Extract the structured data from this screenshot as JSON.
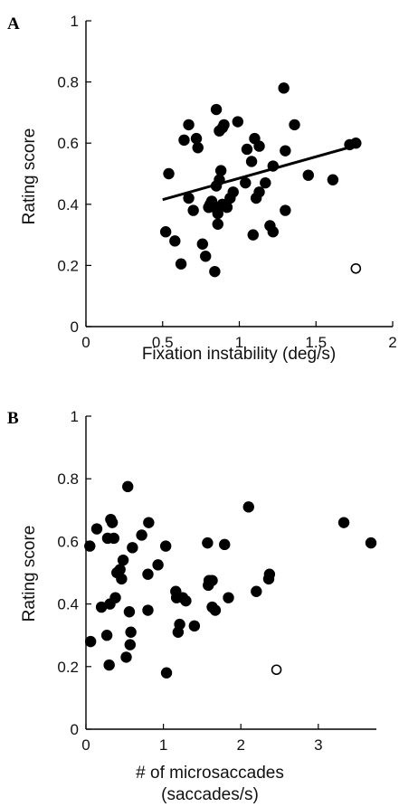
{
  "chart_data": [
    {
      "panel": "A",
      "type": "scatter",
      "xlabel": "Fixation instability (deg/s)",
      "ylabel": "Rating score",
      "xlim": [
        0,
        2
      ],
      "ylim": [
        0,
        1
      ],
      "xticks": [
        "0",
        "0.5",
        "1",
        "1.5",
        "2"
      ],
      "yticks": [
        "0",
        "0.2",
        "0.4",
        "0.6",
        "0.8",
        "1"
      ],
      "grid": false,
      "points": [
        [
          0.52,
          0.31
        ],
        [
          0.54,
          0.5
        ],
        [
          0.58,
          0.28
        ],
        [
          0.62,
          0.205
        ],
        [
          0.64,
          0.61
        ],
        [
          0.67,
          0.42
        ],
        [
          0.67,
          0.66
        ],
        [
          0.7,
          0.38
        ],
        [
          0.72,
          0.615
        ],
        [
          0.73,
          0.585
        ],
        [
          0.76,
          0.27
        ],
        [
          0.78,
          0.23
        ],
        [
          0.8,
          0.39
        ],
        [
          0.81,
          0.4
        ],
        [
          0.82,
          0.41
        ],
        [
          0.84,
          0.18
        ],
        [
          0.84,
          0.39
        ],
        [
          0.85,
          0.71
        ],
        [
          0.85,
          0.46
        ],
        [
          0.86,
          0.335
        ],
        [
          0.86,
          0.37
        ],
        [
          0.87,
          0.64
        ],
        [
          0.87,
          0.48
        ],
        [
          0.88,
          0.51
        ],
        [
          0.89,
          0.65
        ],
        [
          0.89,
          0.4
        ],
        [
          0.9,
          0.66
        ],
        [
          0.92,
          0.39
        ],
        [
          0.94,
          0.42
        ],
        [
          0.96,
          0.44
        ],
        [
          0.99,
          0.67
        ],
        [
          1.04,
          0.47
        ],
        [
          1.05,
          0.58
        ],
        [
          1.08,
          0.54
        ],
        [
          1.09,
          0.3
        ],
        [
          1.1,
          0.615
        ],
        [
          1.11,
          0.42
        ],
        [
          1.13,
          0.59
        ],
        [
          1.13,
          0.44
        ],
        [
          1.17,
          0.47
        ],
        [
          1.2,
          0.33
        ],
        [
          1.22,
          0.31
        ],
        [
          1.22,
          0.525
        ],
        [
          1.29,
          0.78
        ],
        [
          1.3,
          0.38
        ],
        [
          1.3,
          0.575
        ],
        [
          1.36,
          0.66
        ],
        [
          1.45,
          0.495
        ],
        [
          1.61,
          0.48
        ],
        [
          1.72,
          0.595
        ],
        [
          1.76,
          0.6
        ]
      ],
      "outliers": [
        [
          1.76,
          0.19
        ]
      ],
      "fit_line": {
        "x": [
          0.5,
          1.78
        ],
        "y": [
          0.415,
          0.595
        ]
      }
    },
    {
      "panel": "B",
      "type": "scatter",
      "xlabel": "# of microsaccades",
      "xlabel_line2": "(saccades/s)",
      "ylabel": "Rating score",
      "xlim": [
        0,
        3.75
      ],
      "ylim": [
        0,
        1
      ],
      "xticks": [
        "0",
        "1",
        "2",
        "3"
      ],
      "yticks": [
        "0",
        "0.2",
        "0.4",
        "0.6",
        "0.8",
        "1"
      ],
      "grid": false,
      "points": [
        [
          0.05,
          0.585
        ],
        [
          0.06,
          0.28
        ],
        [
          0.14,
          0.64
        ],
        [
          0.2,
          0.39
        ],
        [
          0.27,
          0.3
        ],
        [
          0.28,
          0.61
        ],
        [
          0.3,
          0.205
        ],
        [
          0.31,
          0.4
        ],
        [
          0.32,
          0.67
        ],
        [
          0.34,
          0.66
        ],
        [
          0.36,
          0.61
        ],
        [
          0.38,
          0.42
        ],
        [
          0.4,
          0.5
        ],
        [
          0.44,
          0.51
        ],
        [
          0.46,
          0.48
        ],
        [
          0.48,
          0.54
        ],
        [
          0.52,
          0.23
        ],
        [
          0.54,
          0.775
        ],
        [
          0.56,
          0.375
        ],
        [
          0.57,
          0.27
        ],
        [
          0.58,
          0.31
        ],
        [
          0.6,
          0.58
        ],
        [
          0.72,
          0.62
        ],
        [
          0.8,
          0.38
        ],
        [
          0.81,
          0.66
        ],
        [
          0.8,
          0.495
        ],
        [
          0.93,
          0.525
        ],
        [
          1.03,
          0.585
        ],
        [
          1.04,
          0.18
        ],
        [
          1.16,
          0.44
        ],
        [
          1.17,
          0.42
        ],
        [
          1.19,
          0.31
        ],
        [
          1.21,
          0.335
        ],
        [
          1.25,
          0.42
        ],
        [
          1.29,
          0.41
        ],
        [
          1.4,
          0.33
        ],
        [
          1.57,
          0.595
        ],
        [
          1.58,
          0.46
        ],
        [
          1.59,
          0.475
        ],
        [
          1.63,
          0.475
        ],
        [
          1.63,
          0.39
        ],
        [
          1.67,
          0.38
        ],
        [
          1.79,
          0.59
        ],
        [
          1.84,
          0.42
        ],
        [
          2.1,
          0.71
        ],
        [
          2.2,
          0.44
        ],
        [
          2.36,
          0.48
        ],
        [
          2.37,
          0.495
        ],
        [
          3.33,
          0.66
        ],
        [
          3.68,
          0.595
        ]
      ],
      "outliers": [
        [
          2.46,
          0.19
        ]
      ]
    }
  ],
  "panels": {
    "A": {
      "letter": "A"
    },
    "B": {
      "letter": "B"
    }
  }
}
